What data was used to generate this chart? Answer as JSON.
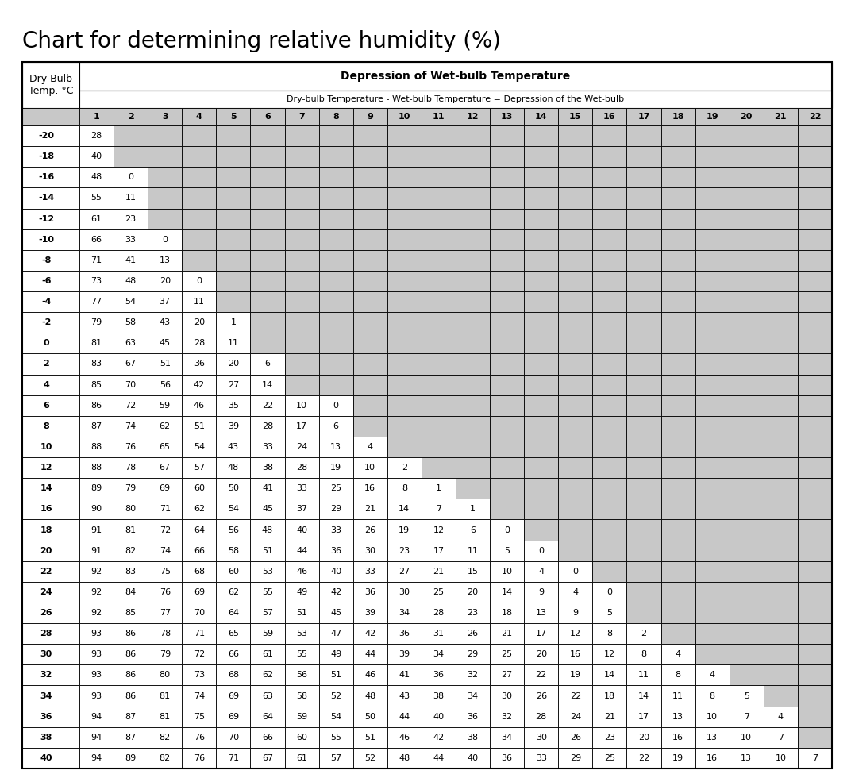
{
  "title": "Chart for determining relative humidity (%)",
  "header_col1_text": "Dry Bulb\nTemp. °C",
  "header_depression_title": "Depression of Wet-bulb Temperature",
  "header_depression_subtitle": "Dry-bulb Temperature - Wet-bulb Temperature = Depression of the Wet-bulb",
  "depression_cols": [
    1,
    2,
    3,
    4,
    5,
    6,
    7,
    8,
    9,
    10,
    11,
    12,
    13,
    14,
    15,
    16,
    17,
    18,
    19,
    20,
    21,
    22
  ],
  "dry_bulb_temps": [
    -20,
    -18,
    -16,
    -14,
    -12,
    -10,
    -8,
    -6,
    -4,
    -2,
    0,
    2,
    4,
    6,
    8,
    10,
    12,
    14,
    16,
    18,
    20,
    22,
    24,
    26,
    28,
    30,
    32,
    34,
    36,
    38,
    40
  ],
  "table_data": {
    "-20": [
      28,
      null,
      null,
      null,
      null,
      null,
      null,
      null,
      null,
      null,
      null,
      null,
      null,
      null,
      null,
      null,
      null,
      null,
      null,
      null,
      null,
      null
    ],
    "-18": [
      40,
      null,
      null,
      null,
      null,
      null,
      null,
      null,
      null,
      null,
      null,
      null,
      null,
      null,
      null,
      null,
      null,
      null,
      null,
      null,
      null,
      null
    ],
    "-16": [
      48,
      0,
      null,
      null,
      null,
      null,
      null,
      null,
      null,
      null,
      null,
      null,
      null,
      null,
      null,
      null,
      null,
      null,
      null,
      null,
      null,
      null
    ],
    "-14": [
      55,
      11,
      null,
      null,
      null,
      null,
      null,
      null,
      null,
      null,
      null,
      null,
      null,
      null,
      null,
      null,
      null,
      null,
      null,
      null,
      null,
      null
    ],
    "-12": [
      61,
      23,
      null,
      null,
      null,
      null,
      null,
      null,
      null,
      null,
      null,
      null,
      null,
      null,
      null,
      null,
      null,
      null,
      null,
      null,
      null,
      null
    ],
    "-10": [
      66,
      33,
      0,
      null,
      null,
      null,
      null,
      null,
      null,
      null,
      null,
      null,
      null,
      null,
      null,
      null,
      null,
      null,
      null,
      null,
      null,
      null
    ],
    "-8": [
      71,
      41,
      13,
      null,
      null,
      null,
      null,
      null,
      null,
      null,
      null,
      null,
      null,
      null,
      null,
      null,
      null,
      null,
      null,
      null,
      null,
      null
    ],
    "-6": [
      73,
      48,
      20,
      0,
      null,
      null,
      null,
      null,
      null,
      null,
      null,
      null,
      null,
      null,
      null,
      null,
      null,
      null,
      null,
      null,
      null,
      null
    ],
    "-4": [
      77,
      54,
      37,
      11,
      null,
      null,
      null,
      null,
      null,
      null,
      null,
      null,
      null,
      null,
      null,
      null,
      null,
      null,
      null,
      null,
      null,
      null
    ],
    "-2": [
      79,
      58,
      43,
      20,
      1,
      null,
      null,
      null,
      null,
      null,
      null,
      null,
      null,
      null,
      null,
      null,
      null,
      null,
      null,
      null,
      null,
      null
    ],
    "0": [
      81,
      63,
      45,
      28,
      11,
      null,
      null,
      null,
      null,
      null,
      null,
      null,
      null,
      null,
      null,
      null,
      null,
      null,
      null,
      null,
      null,
      null
    ],
    "2": [
      83,
      67,
      51,
      36,
      20,
      6,
      null,
      null,
      null,
      null,
      null,
      null,
      null,
      null,
      null,
      null,
      null,
      null,
      null,
      null,
      null,
      null
    ],
    "4": [
      85,
      70,
      56,
      42,
      27,
      14,
      null,
      null,
      null,
      null,
      null,
      null,
      null,
      null,
      null,
      null,
      null,
      null,
      null,
      null,
      null,
      null
    ],
    "6": [
      86,
      72,
      59,
      46,
      35,
      22,
      10,
      0,
      null,
      null,
      null,
      null,
      null,
      null,
      null,
      null,
      null,
      null,
      null,
      null,
      null,
      null
    ],
    "8": [
      87,
      74,
      62,
      51,
      39,
      28,
      17,
      6,
      null,
      null,
      null,
      null,
      null,
      null,
      null,
      null,
      null,
      null,
      null,
      null,
      null,
      null
    ],
    "10": [
      88,
      76,
      65,
      54,
      43,
      33,
      24,
      13,
      4,
      null,
      null,
      null,
      null,
      null,
      null,
      null,
      null,
      null,
      null,
      null,
      null,
      null
    ],
    "12": [
      88,
      78,
      67,
      57,
      48,
      38,
      28,
      19,
      10,
      2,
      null,
      null,
      null,
      null,
      null,
      null,
      null,
      null,
      null,
      null,
      null,
      null
    ],
    "14": [
      89,
      79,
      69,
      60,
      50,
      41,
      33,
      25,
      16,
      8,
      1,
      null,
      null,
      null,
      null,
      null,
      null,
      null,
      null,
      null,
      null,
      null
    ],
    "16": [
      90,
      80,
      71,
      62,
      54,
      45,
      37,
      29,
      21,
      14,
      7,
      1,
      null,
      null,
      null,
      null,
      null,
      null,
      null,
      null,
      null,
      null
    ],
    "18": [
      91,
      81,
      72,
      64,
      56,
      48,
      40,
      33,
      26,
      19,
      12,
      6,
      0,
      null,
      null,
      null,
      null,
      null,
      null,
      null,
      null,
      null
    ],
    "20": [
      91,
      82,
      74,
      66,
      58,
      51,
      44,
      36,
      30,
      23,
      17,
      11,
      5,
      0,
      null,
      null,
      null,
      null,
      null,
      null,
      null,
      null
    ],
    "22": [
      92,
      83,
      75,
      68,
      60,
      53,
      46,
      40,
      33,
      27,
      21,
      15,
      10,
      4,
      0,
      null,
      null,
      null,
      null,
      null,
      null,
      null
    ],
    "24": [
      92,
      84,
      76,
      69,
      62,
      55,
      49,
      42,
      36,
      30,
      25,
      20,
      14,
      9,
      4,
      0,
      null,
      null,
      null,
      null,
      null,
      null
    ],
    "26": [
      92,
      85,
      77,
      70,
      64,
      57,
      51,
      45,
      39,
      34,
      28,
      23,
      18,
      13,
      9,
      5,
      null,
      null,
      null,
      null,
      null,
      null
    ],
    "28": [
      93,
      86,
      78,
      71,
      65,
      59,
      53,
      47,
      42,
      36,
      31,
      26,
      21,
      17,
      12,
      8,
      2,
      null,
      null,
      null,
      null,
      null
    ],
    "30": [
      93,
      86,
      79,
      72,
      66,
      61,
      55,
      49,
      44,
      39,
      34,
      29,
      25,
      20,
      16,
      12,
      8,
      4,
      null,
      null,
      null,
      null
    ],
    "32": [
      93,
      86,
      80,
      73,
      68,
      62,
      56,
      51,
      46,
      41,
      36,
      32,
      27,
      22,
      19,
      14,
      11,
      8,
      4,
      null,
      null,
      null
    ],
    "34": [
      93,
      86,
      81,
      74,
      69,
      63,
      58,
      52,
      48,
      43,
      38,
      34,
      30,
      26,
      22,
      18,
      14,
      11,
      8,
      5,
      null,
      null
    ],
    "36": [
      94,
      87,
      81,
      75,
      69,
      64,
      59,
      54,
      50,
      44,
      40,
      36,
      32,
      28,
      24,
      21,
      17,
      13,
      10,
      7,
      4,
      null
    ],
    "38": [
      94,
      87,
      82,
      76,
      70,
      66,
      60,
      55,
      51,
      46,
      42,
      38,
      34,
      30,
      26,
      23,
      20,
      16,
      13,
      10,
      7,
      null
    ],
    "40": [
      94,
      89,
      82,
      76,
      71,
      67,
      61,
      57,
      52,
      48,
      44,
      40,
      36,
      33,
      29,
      25,
      22,
      19,
      16,
      13,
      10,
      7
    ]
  },
  "gray_bg": "#c8c8c8",
  "white_bg": "#ffffff",
  "border_color": "#000000",
  "text_color": "#000000",
  "title_fontsize": 20,
  "header_fontsize": 9,
  "subheader_fontsize": 8,
  "col_num_fontsize": 8,
  "data_fontsize": 8
}
